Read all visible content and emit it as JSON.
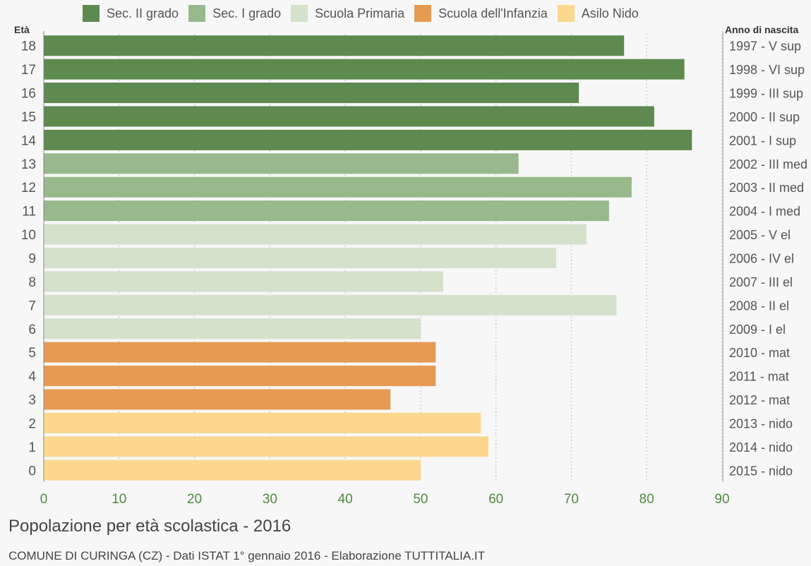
{
  "colors": {
    "sec2": "#5d8a4e",
    "sec1": "#97b98b",
    "primaria": "#d4e2cb",
    "infanzia": "#e59a52",
    "nido": "#fbd88c",
    "axis_text": "#4e8a3f",
    "grid": "#c8c8c8"
  },
  "legend": [
    {
      "label": "Sec. II grado",
      "color": "#5d8a4e"
    },
    {
      "label": "Sec. I grado",
      "color": "#97b98b"
    },
    {
      "label": "Scuola Primaria",
      "color": "#d4e2cb"
    },
    {
      "label": "Scuola dell'Infanzia",
      "color": "#e59a52"
    },
    {
      "label": "Asilo Nido",
      "color": "#fbd88c"
    }
  ],
  "chart_data": {
    "type": "bar",
    "orientation": "horizontal",
    "title": "Popolazione per età scolastica - 2016",
    "subtitle": "COMUNE DI CURINGA (CZ) - Dati ISTAT 1° gennaio 2016 - Elaborazione TUTTITALIA.IT",
    "left_axis_label": "Età",
    "right_axis_label": "Anno di nascita",
    "xlim": [
      0,
      90
    ],
    "x_ticks": [
      0,
      10,
      20,
      30,
      40,
      50,
      60,
      70,
      80,
      90
    ],
    "grid": true,
    "legend_position": "top",
    "categories": [
      "18",
      "17",
      "16",
      "15",
      "14",
      "13",
      "12",
      "11",
      "10",
      "9",
      "8",
      "7",
      "6",
      "5",
      "4",
      "3",
      "2",
      "1",
      "0"
    ],
    "right_labels": [
      "1997 - V sup",
      "1998 - VI sup",
      "1999 - III sup",
      "2000 - II sup",
      "2001 - I sup",
      "2002 - III med",
      "2003 - II med",
      "2004 - I med",
      "2005 - V el",
      "2006 - IV el",
      "2007 - III el",
      "2008 - II el",
      "2009 - I el",
      "2010 - mat",
      "2011 - mat",
      "2012 - mat",
      "2013 - nido",
      "2014 - nido",
      "2015 - nido"
    ],
    "values": [
      77,
      85,
      71,
      81,
      86,
      63,
      78,
      75,
      72,
      68,
      53,
      76,
      50,
      52,
      52,
      46,
      58,
      59,
      50
    ],
    "groups": [
      "sec2",
      "sec2",
      "sec2",
      "sec2",
      "sec2",
      "sec1",
      "sec1",
      "sec1",
      "primaria",
      "primaria",
      "primaria",
      "primaria",
      "primaria",
      "infanzia",
      "infanzia",
      "infanzia",
      "nido",
      "nido",
      "nido"
    ]
  }
}
